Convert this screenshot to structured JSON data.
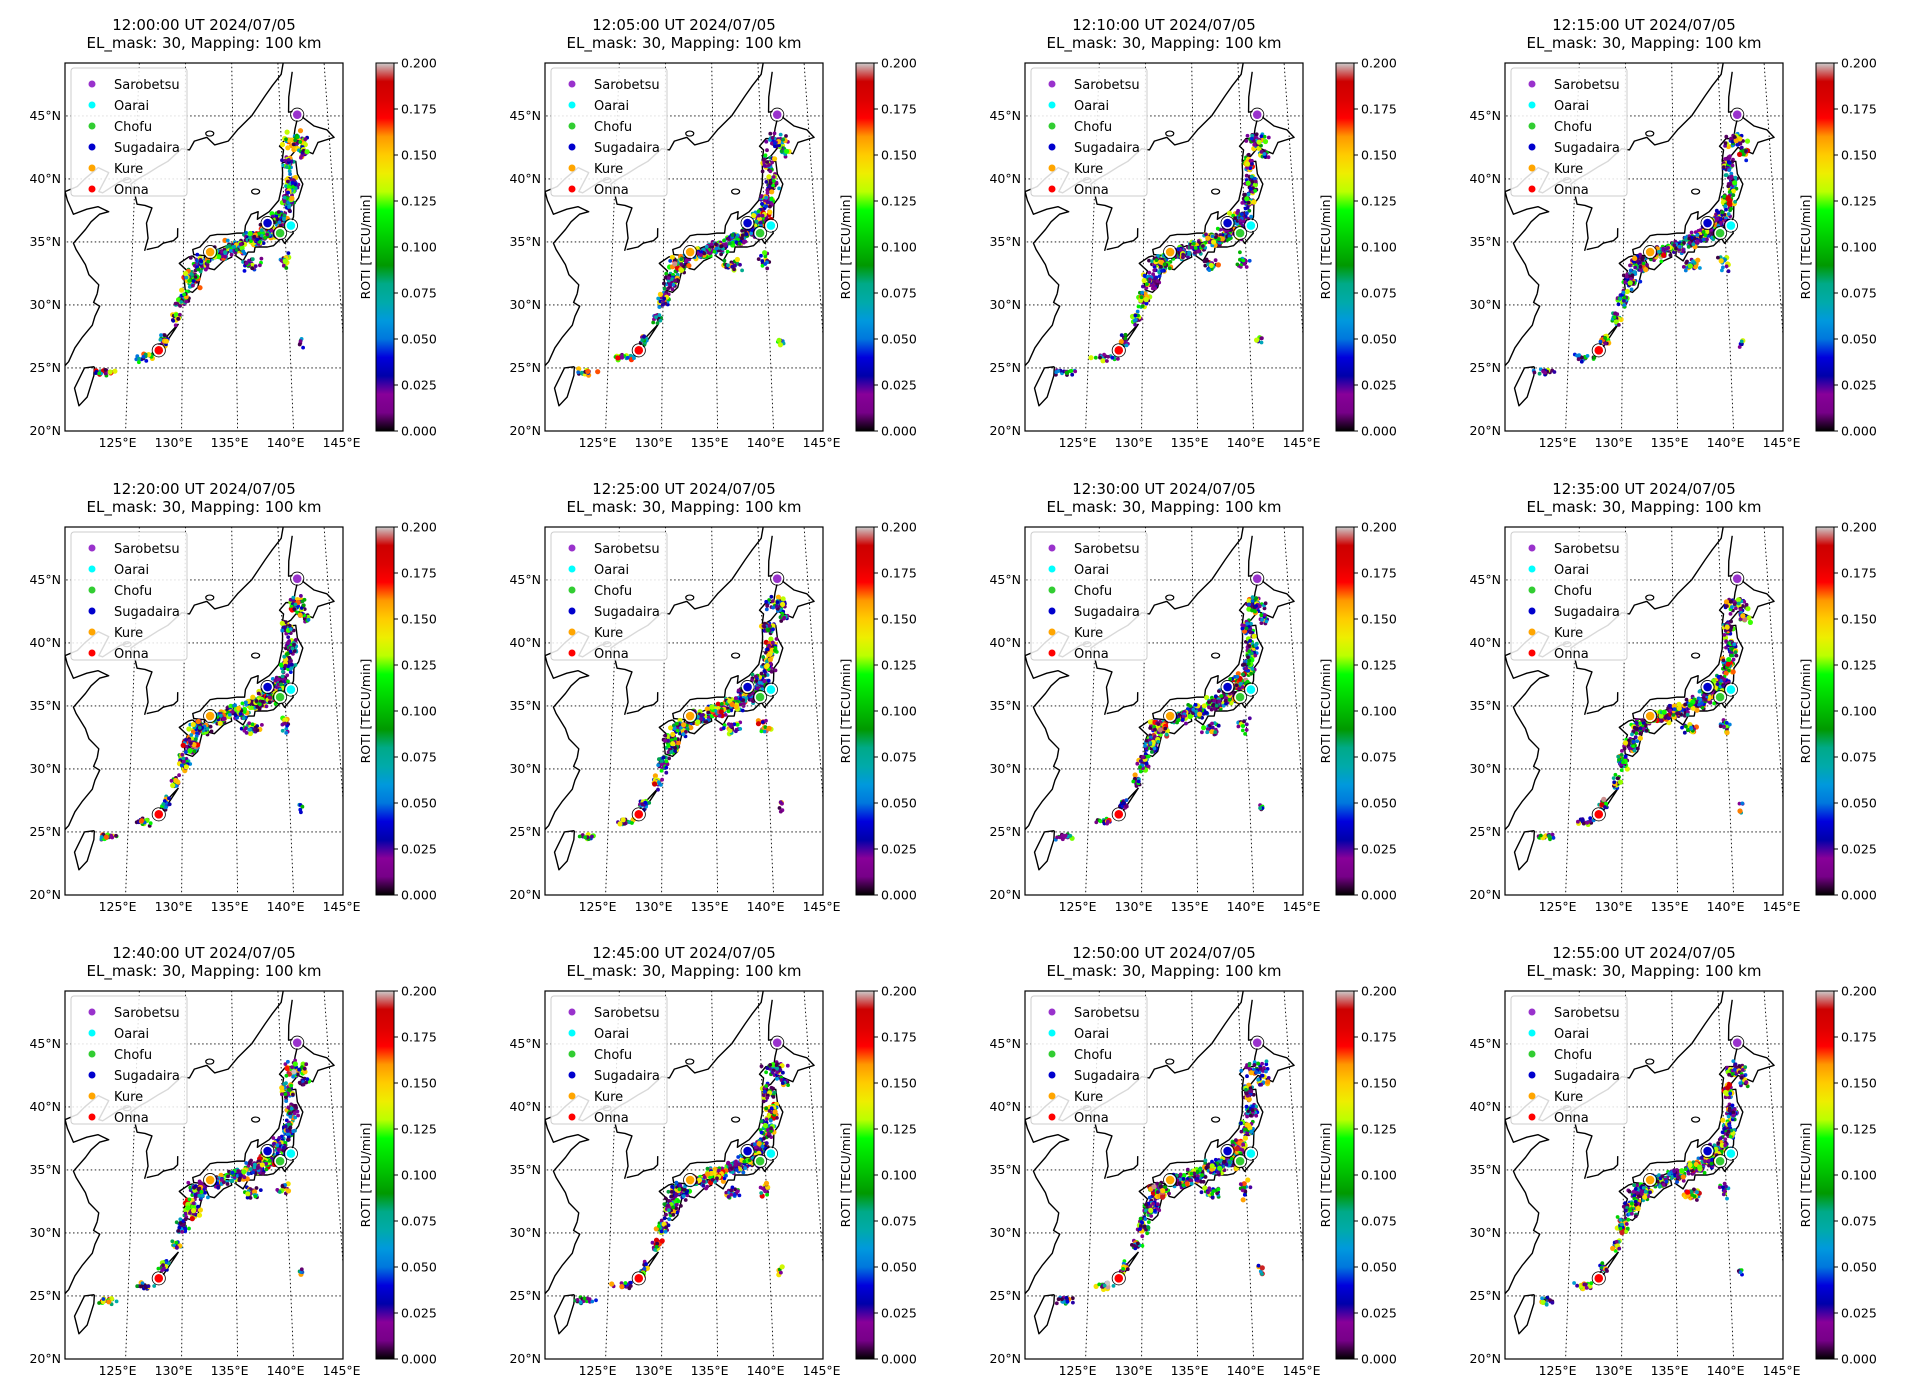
{
  "subtitle": "EL_mask: 30, Mapping: 100 km",
  "panels": [
    {
      "time": "12:00:00 UT 2024/07/05"
    },
    {
      "time": "12:05:00 UT 2024/07/05"
    },
    {
      "time": "12:10:00 UT 2024/07/05"
    },
    {
      "time": "12:15:00 UT 2024/07/05"
    },
    {
      "time": "12:20:00 UT 2024/07/05"
    },
    {
      "time": "12:25:00 UT 2024/07/05"
    },
    {
      "time": "12:30:00 UT 2024/07/05"
    },
    {
      "time": "12:35:00 UT 2024/07/05"
    },
    {
      "time": "12:40:00 UT 2024/07/05"
    },
    {
      "time": "12:45:00 UT 2024/07/05"
    },
    {
      "time": "12:50:00 UT 2024/07/05"
    },
    {
      "time": "12:55:00 UT 2024/07/05"
    }
  ],
  "legend": [
    {
      "label": "Sarobetsu",
      "color": "#9932cc"
    },
    {
      "label": "Oarai",
      "color": "#00ffff"
    },
    {
      "label": "Chofu",
      "color": "#32cd32"
    },
    {
      "label": "Sugadaira",
      "color": "#0000cd"
    },
    {
      "label": "Kure",
      "color": "#ffa500"
    },
    {
      "label": "Onna",
      "color": "#ff0000"
    }
  ],
  "lat_ticks": [
    "20°N",
    "25°N",
    "30°N",
    "35°N",
    "40°N",
    "45°N"
  ],
  "lon_ticks": [
    "125°E",
    "130°E",
    "135°E",
    "140°E",
    "145°E"
  ],
  "colorbar": {
    "label": "ROTI [TECU/min]",
    "min": 0.0,
    "max": 0.2,
    "ticks": [
      "0.000",
      "0.025",
      "0.050",
      "0.075",
      "0.100",
      "0.125",
      "0.150",
      "0.175",
      "0.200"
    ],
    "colormap": "nipy_spectral"
  }
}
